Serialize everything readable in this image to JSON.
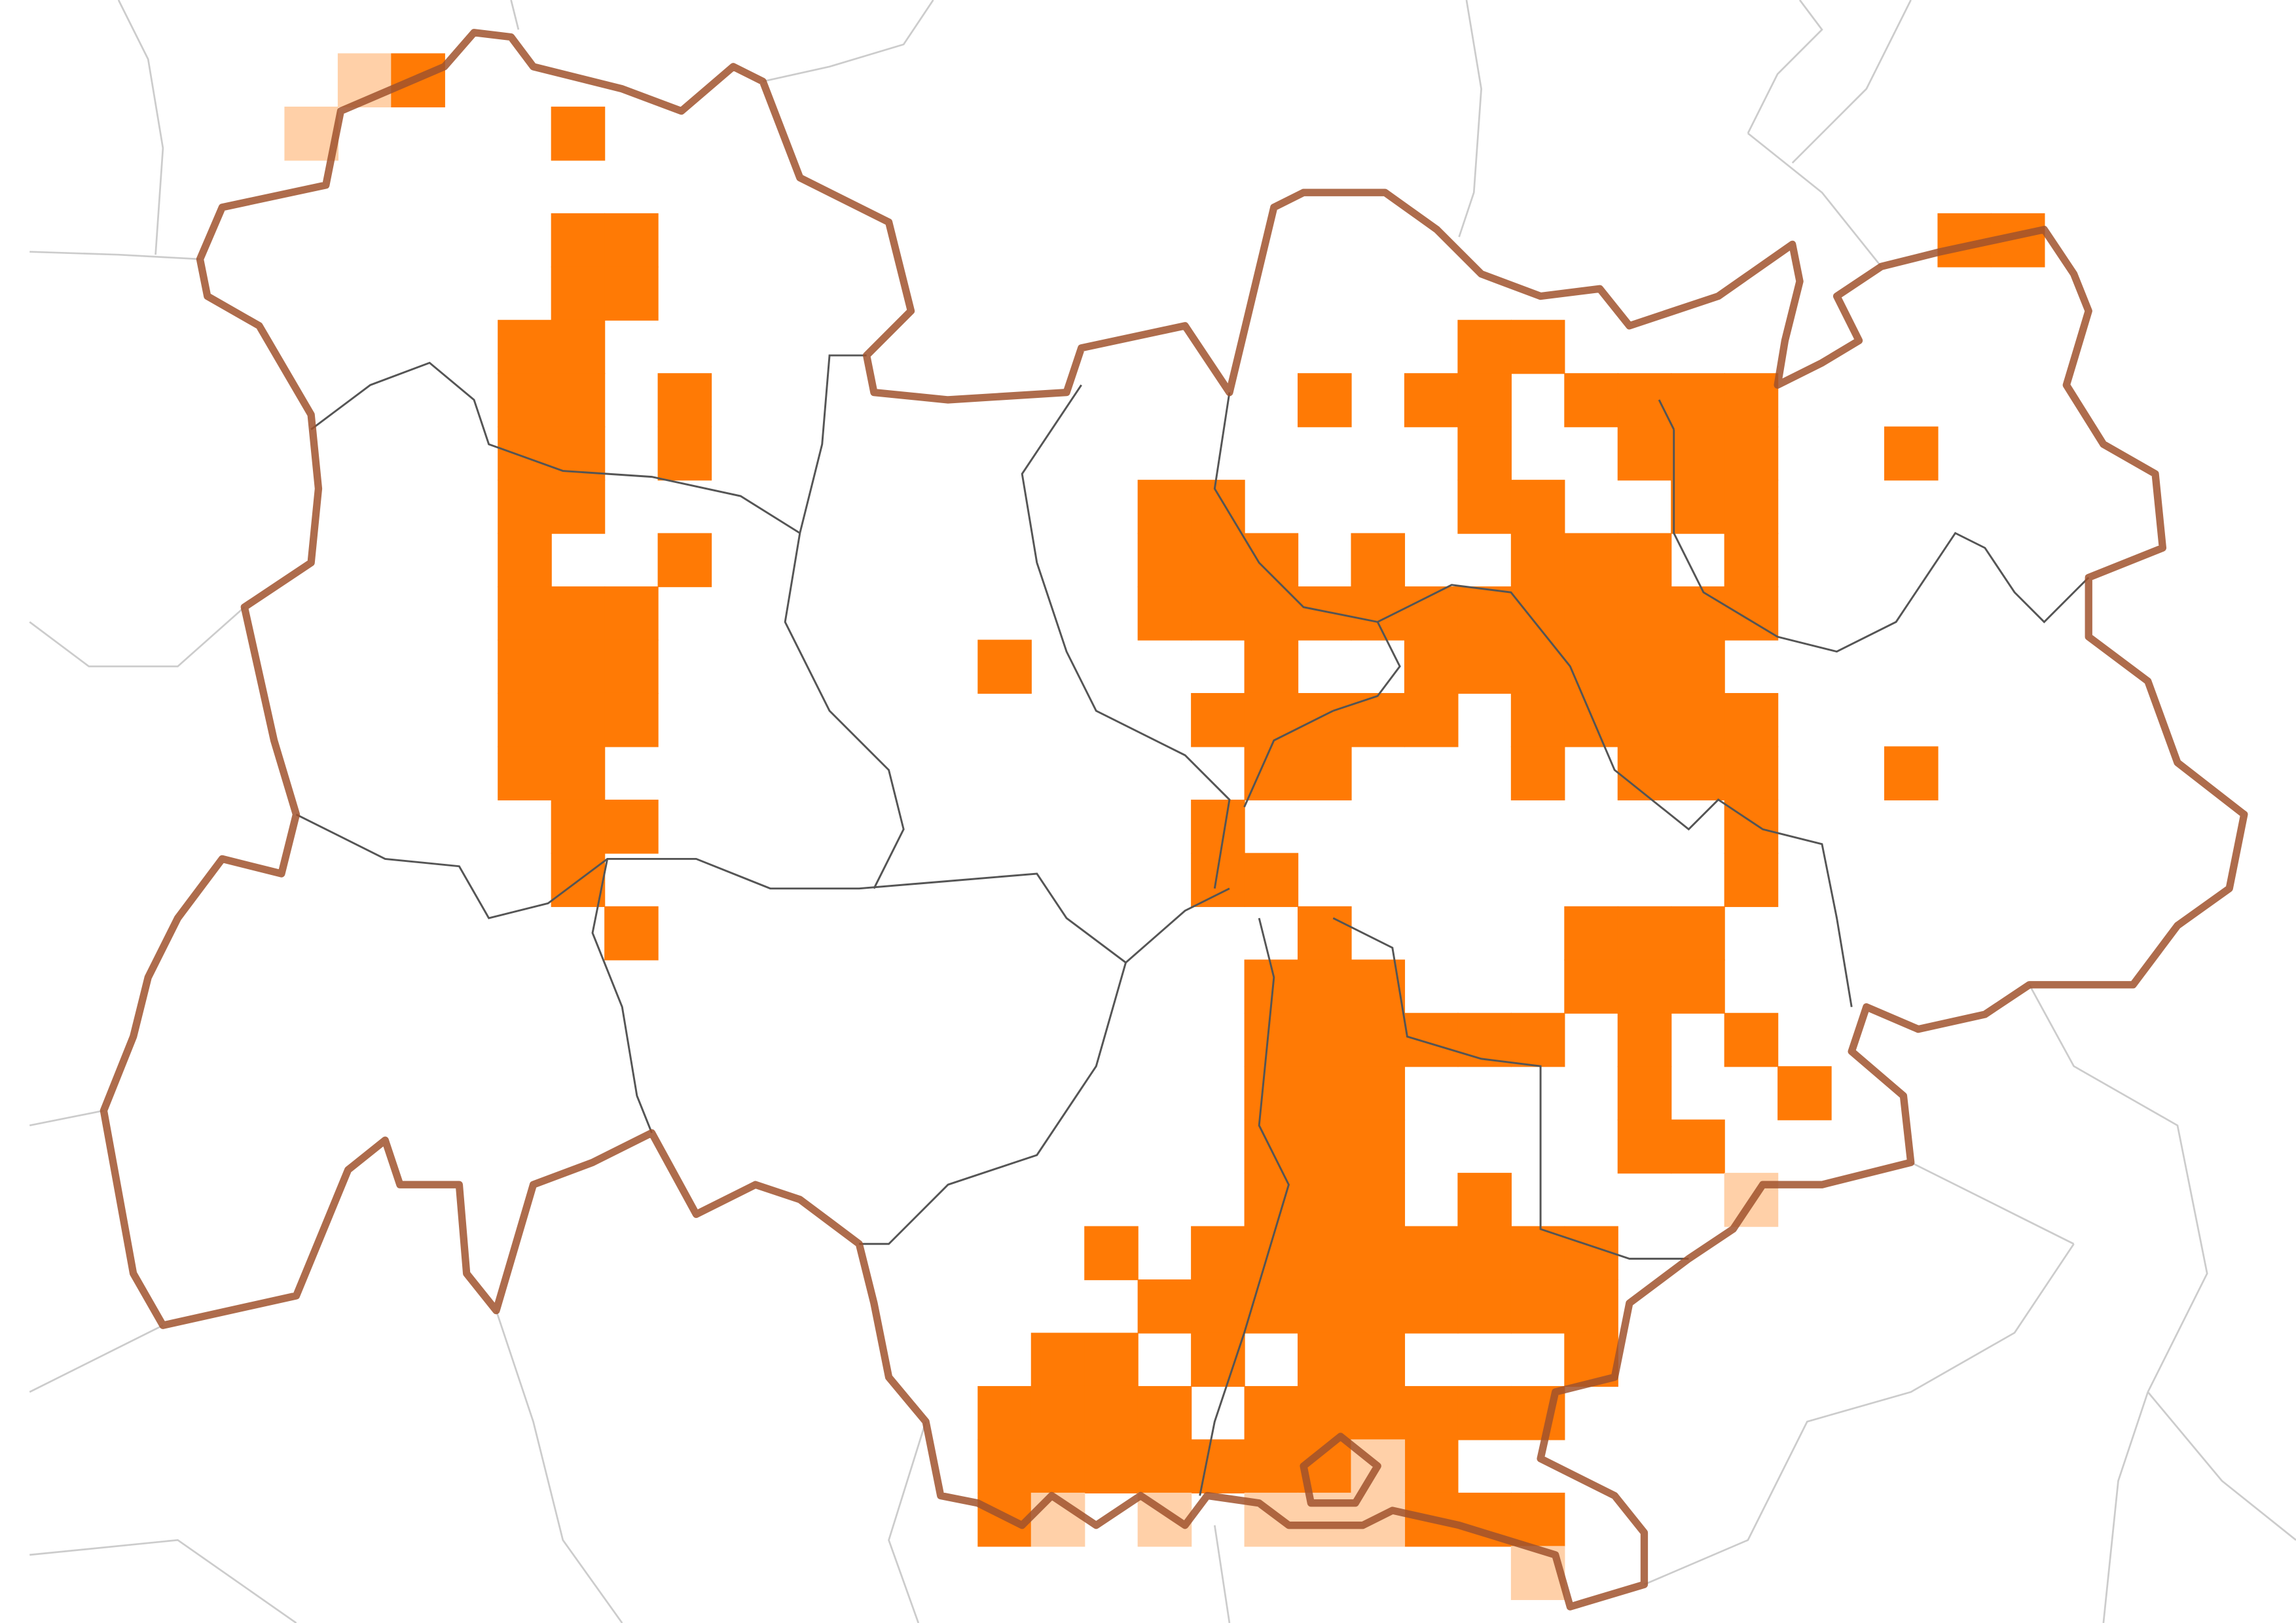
{
  "map": {
    "colors": {
      "present": "#ff7a05",
      "partial": "#ffd0a8",
      "region_border": "#a0522d",
      "department_border": "#555555",
      "neighbour_border": "#cccccc",
      "background": "#ffffff"
    },
    "grid_cells": [
      {
        "row": 0,
        "cols": [
          1
        ],
        "status": "partial"
      },
      {
        "row": 0,
        "cols": [
          2
        ],
        "status": "present"
      },
      {
        "row": 1,
        "cols": [
          0
        ],
        "status": "partial"
      },
      {
        "row": 1,
        "cols": [
          5
        ],
        "status": "present"
      },
      {
        "row": 3,
        "cols": [
          5,
          6,
          31,
          32
        ],
        "status": "present"
      },
      {
        "row": 4,
        "cols": [
          5,
          6
        ],
        "status": "present"
      },
      {
        "row": 5,
        "cols": [
          4,
          5,
          22,
          23
        ],
        "status": "present"
      },
      {
        "row": 6,
        "cols": [
          4,
          5,
          7,
          19,
          21,
          22,
          24,
          25,
          26,
          27
        ],
        "status": "present"
      },
      {
        "row": 7,
        "cols": [
          4,
          5,
          7,
          22,
          25,
          26,
          27,
          30
        ],
        "status": "present"
      },
      {
        "row": 8,
        "cols": [
          4,
          5,
          16,
          17,
          22,
          23,
          26,
          27
        ],
        "status": "present"
      },
      {
        "row": 9,
        "cols": [
          4,
          7,
          16,
          17,
          18,
          20,
          23,
          24,
          25,
          27
        ],
        "status": "present"
      },
      {
        "row": 10,
        "cols": [
          4,
          5,
          6,
          16,
          17,
          18,
          19,
          20,
          21,
          22,
          23,
          24,
          25,
          26,
          27
        ],
        "status": "present"
      },
      {
        "row": 11,
        "cols": [
          4,
          5,
          6,
          13,
          18,
          21,
          22,
          23,
          24,
          25,
          26
        ],
        "status": "present"
      },
      {
        "row": 12,
        "cols": [
          4,
          5,
          6,
          17,
          18,
          19,
          20,
          21,
          23,
          24,
          25,
          26,
          27
        ],
        "status": "present"
      },
      {
        "row": 13,
        "cols": [
          4,
          5,
          18,
          19,
          23,
          25,
          26,
          27,
          30
        ],
        "status": "present"
      },
      {
        "row": 14,
        "cols": [
          5,
          6,
          17,
          27
        ],
        "status": "present"
      },
      {
        "row": 15,
        "cols": [
          5,
          17,
          18,
          27
        ],
        "status": "present"
      },
      {
        "row": 16,
        "cols": [
          6,
          19,
          24,
          25,
          26
        ],
        "status": "present"
      },
      {
        "row": 17,
        "cols": [
          18,
          19,
          20,
          24,
          25,
          26
        ],
        "status": "present"
      },
      {
        "row": 18,
        "cols": [
          18,
          19,
          20,
          21,
          22,
          23,
          25,
          27
        ],
        "status": "present"
      },
      {
        "row": 19,
        "cols": [
          18,
          19,
          20,
          25,
          28
        ],
        "status": "present"
      },
      {
        "row": 20,
        "cols": [
          18,
          19,
          20,
          25,
          26
        ],
        "status": "present"
      },
      {
        "row": 21,
        "cols": [
          18,
          19,
          20,
          22
        ],
        "status": "present"
      },
      {
        "row": 21,
        "cols": [
          27
        ],
        "status": "partial"
      },
      {
        "row": 22,
        "cols": [
          15,
          17,
          18,
          19,
          20,
          21,
          22,
          23,
          24
        ],
        "status": "present"
      },
      {
        "row": 23,
        "cols": [
          16,
          17,
          18,
          19,
          20,
          21,
          22,
          23,
          24
        ],
        "status": "present"
      },
      {
        "row": 24,
        "cols": [
          14,
          15,
          17,
          19,
          20,
          24
        ],
        "status": "present"
      },
      {
        "row": 25,
        "cols": [
          13,
          14,
          15,
          16,
          18,
          19,
          20,
          21,
          22,
          23
        ],
        "status": "present"
      },
      {
        "row": 26,
        "cols": [
          13,
          14,
          15,
          16,
          17,
          18,
          19,
          21
        ],
        "status": "present"
      },
      {
        "row": 26,
        "cols": [
          20
        ],
        "status": "partial"
      },
      {
        "row": 27,
        "cols": [
          13,
          21,
          22,
          23
        ],
        "status": "present"
      },
      {
        "row": 27,
        "cols": [
          14,
          16,
          18,
          19,
          20
        ],
        "status": "partial"
      },
      {
        "row": 28,
        "cols": [
          23
        ],
        "status": "partial"
      }
    ]
  }
}
